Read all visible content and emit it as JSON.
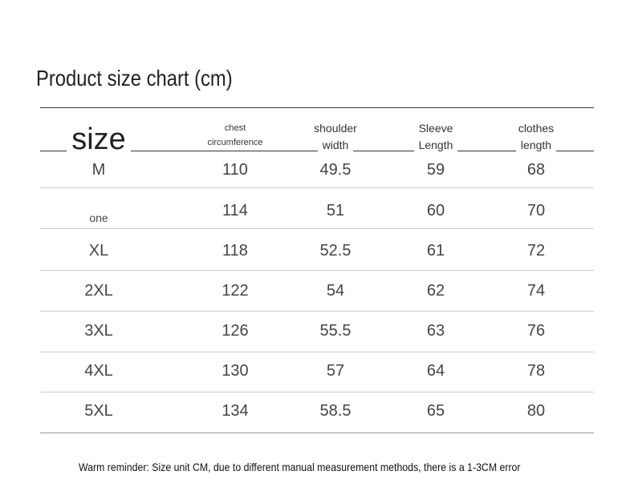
{
  "title": "Product size chart (cm)",
  "table": {
    "header": [
      [
        "size"
      ],
      [
        "chest",
        "circumference"
      ],
      [
        "shoulder",
        "width"
      ],
      [
        "Sleeve",
        "Length"
      ],
      [
        "clothes",
        "length"
      ]
    ],
    "rows": [
      [
        "M",
        "110",
        "49.5",
        "59",
        "68"
      ],
      [
        "one",
        "114",
        "51",
        "60",
        "70"
      ],
      [
        "XL",
        "118",
        "52.5",
        "61",
        "72"
      ],
      [
        "2XL",
        "122",
        "54",
        "62",
        "74"
      ],
      [
        "3XL",
        "126",
        "55.5",
        "63",
        "76"
      ],
      [
        "4XL",
        "130",
        "57",
        "64",
        "78"
      ],
      [
        "5XL",
        "134",
        "58.5",
        "65",
        "80"
      ]
    ]
  },
  "note": "Warm reminder: Size unit CM, due to different manual measurement methods, there is a 1-3CM error"
}
